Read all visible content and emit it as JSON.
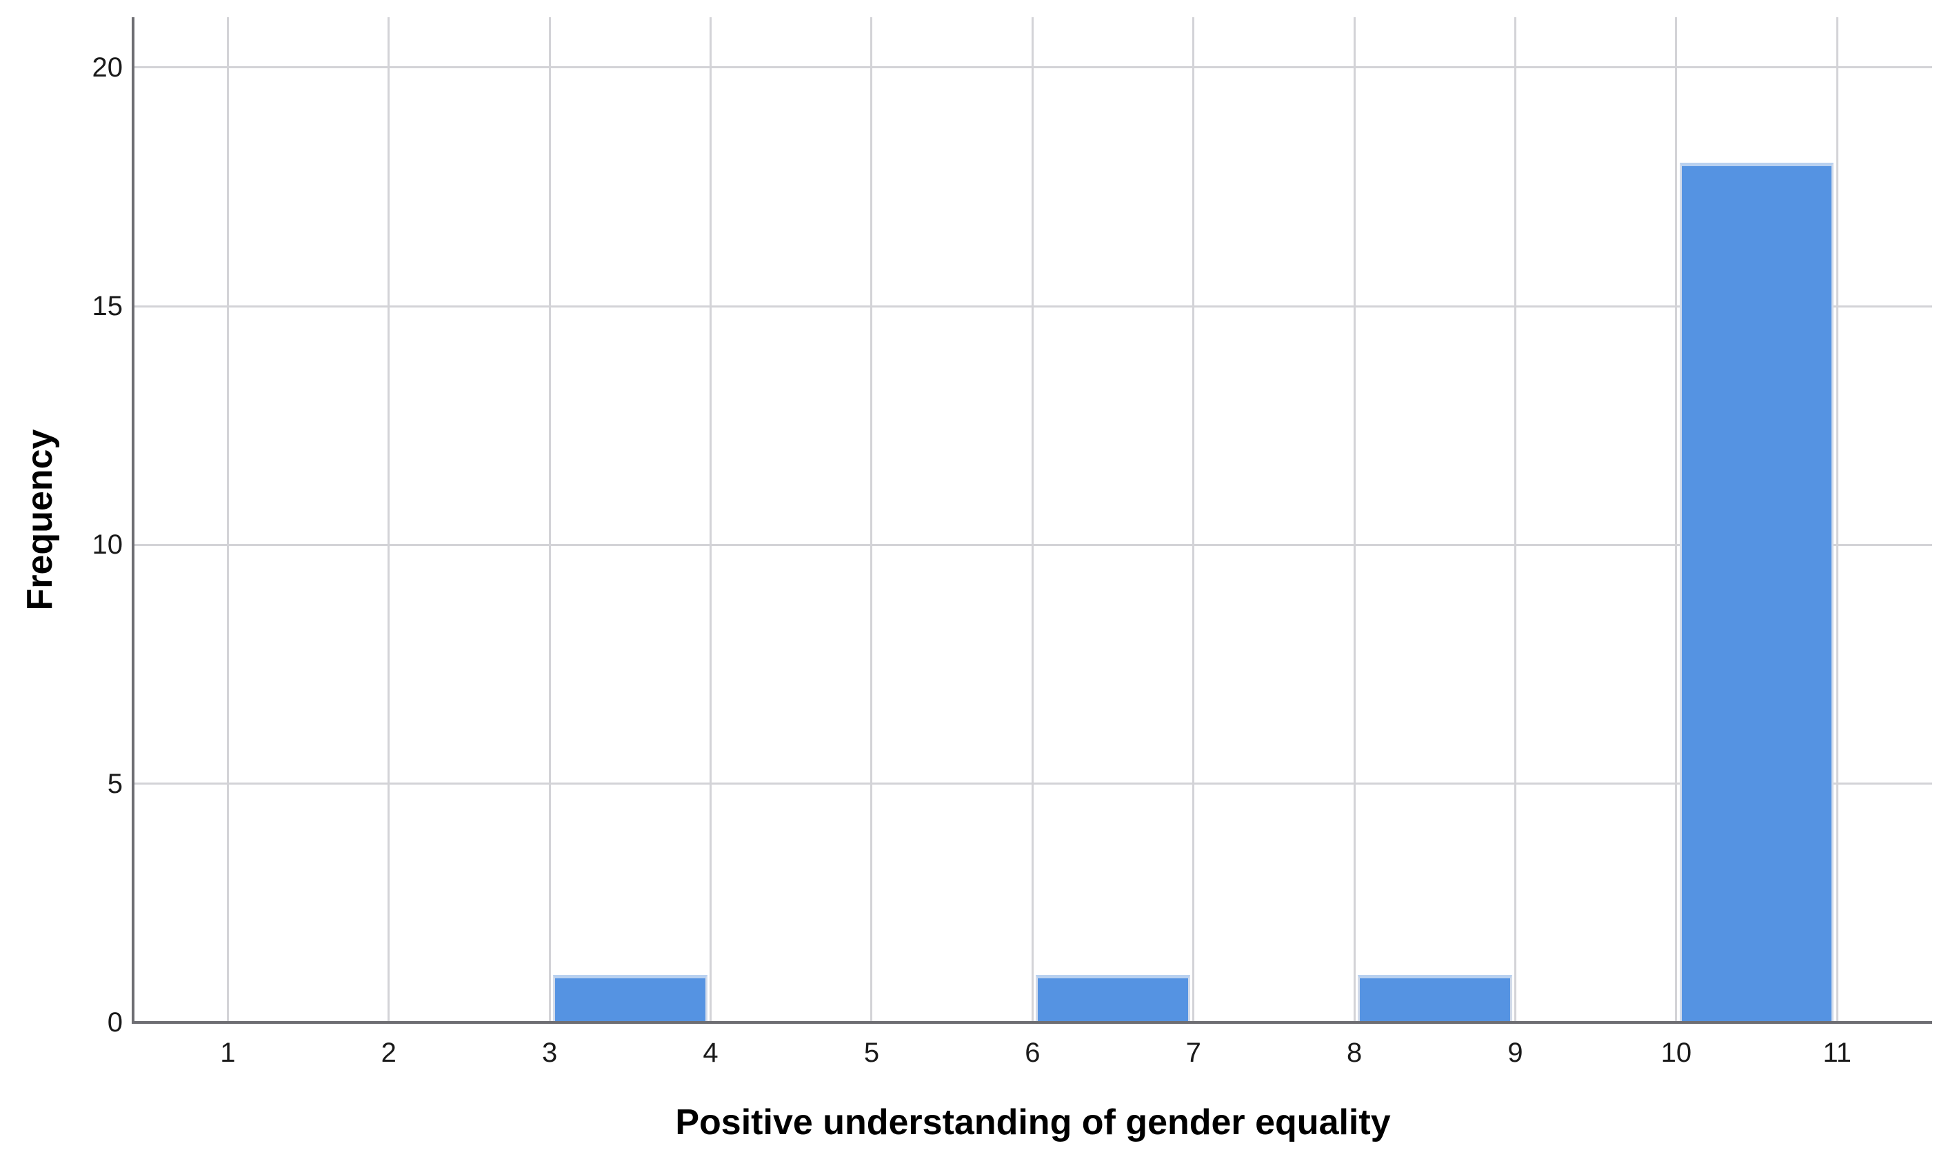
{
  "chart_data": {
    "type": "bar",
    "subtype": "histogram",
    "title": "",
    "xlabel": "Positive understanding of gender equality",
    "ylabel": "Frequency",
    "x_ticks": [
      1,
      2,
      3,
      4,
      5,
      6,
      7,
      8,
      9,
      10,
      11
    ],
    "y_ticks": [
      0,
      5,
      10,
      15,
      20
    ],
    "xlim": [
      0.42,
      11.59
    ],
    "ylim": [
      0,
      21.05
    ],
    "grid": "both",
    "legend": "none",
    "bars": [
      {
        "bin_start": 3,
        "bin_end": 4,
        "frequency": 1
      },
      {
        "bin_start": 6,
        "bin_end": 7,
        "frequency": 1
      },
      {
        "bin_start": 8,
        "bin_end": 9,
        "frequency": 1
      },
      {
        "bin_start": 10,
        "bin_end": 11,
        "frequency": 18
      }
    ],
    "colors": {
      "bar_fill": "#5593e2",
      "bar_top_edge": "#b9d1f0",
      "bar_side_edge": "#d2dbea",
      "gridline": "#d3d3d7",
      "axis_line": "#6e6e73",
      "text": "#1a1a1a",
      "background": "#ffffff"
    }
  }
}
